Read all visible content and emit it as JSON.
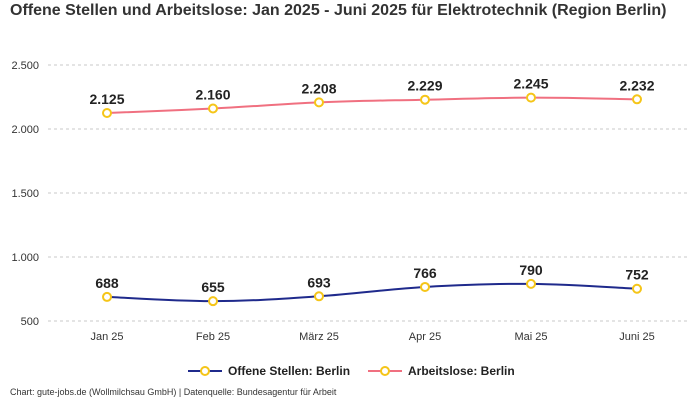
{
  "chart_data": {
    "type": "line",
    "title": "Offene Stellen und Arbeitslose: Jan 2025 - Juni 2025 für Elektrotechnik (Region Berlin)",
    "categories": [
      "Jan 25",
      "Feb 25",
      "März 25",
      "Apr 25",
      "Mai 25",
      "Juni 25"
    ],
    "y_ticks": [
      "500",
      "1.000",
      "1.500",
      "2.000",
      "2.500"
    ],
    "ylim": [
      500,
      2500
    ],
    "grid": true,
    "legend_position": "bottom",
    "series": [
      {
        "name": "Offene Stellen: Berlin",
        "values": [
          688,
          655,
          693,
          766,
          790,
          752
        ],
        "labels": [
          "688",
          "655",
          "693",
          "766",
          "790",
          "752"
        ],
        "color": "#1f2a8c",
        "marker_color": "#f5c518"
      },
      {
        "name": "Arbeitslose: Berlin",
        "values": [
          2125,
          2160,
          2208,
          2229,
          2245,
          2232
        ],
        "labels": [
          "2.125",
          "2.160",
          "2.208",
          "2.229",
          "2.245",
          "2.232"
        ],
        "color": "#f07080",
        "marker_color": "#f5c518"
      }
    ]
  },
  "source": "Chart: gute-jobs.de (Wollmilchsau GmbH) | Datenquelle: Bundesagentur für Arbeit"
}
